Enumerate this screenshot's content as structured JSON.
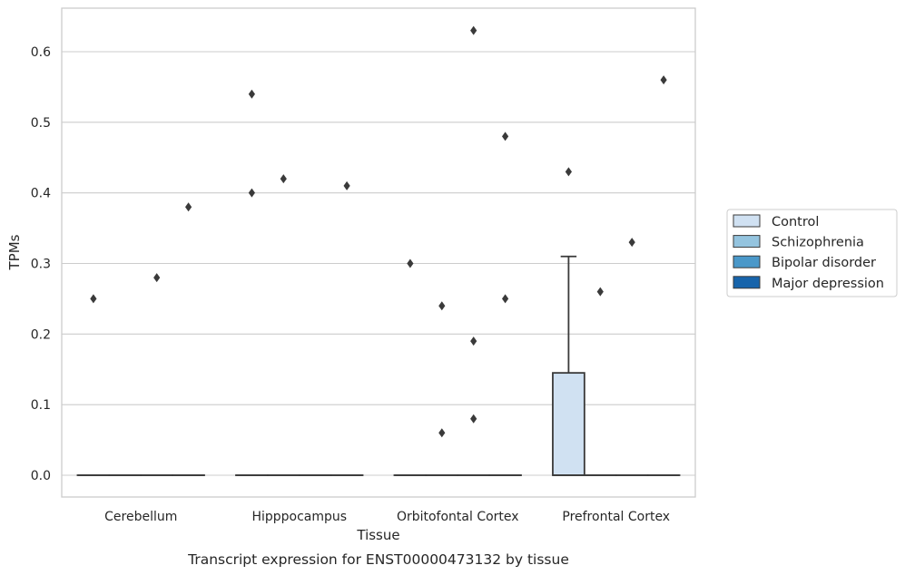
{
  "chart_data": {
    "type": "box",
    "title": "",
    "caption": "Transcript expression for ENST00000473132 by tissue",
    "xlabel": "Tissue",
    "ylabel": "TPMs",
    "ylim": [
      -0.03,
      0.665
    ],
    "yticks": [
      0.0,
      0.1,
      0.2,
      0.3,
      0.4,
      0.5,
      0.6
    ],
    "ytick_labels": [
      "0.0",
      "0.1",
      "0.2",
      "0.3",
      "0.4",
      "0.5",
      "0.6"
    ],
    "grid": "horizontal",
    "legend_position": "right",
    "categories": [
      "Cerebellum",
      "Hipppocampus",
      "Orbitofontal Cortex",
      "Prefrontal Cortex"
    ],
    "series": [
      {
        "name": "Control",
        "color": "#d0e1f2",
        "boxes": [
          {
            "q1": 0,
            "median": 0,
            "q3": 0,
            "whisker_low": 0,
            "whisker_high": 0,
            "outliers": [
              0.25
            ]
          },
          {
            "q1": 0,
            "median": 0,
            "q3": 0,
            "whisker_low": 0,
            "whisker_high": 0,
            "outliers": [
              0.54,
              0.4
            ]
          },
          {
            "q1": 0,
            "median": 0,
            "q3": 0,
            "whisker_low": 0,
            "whisker_high": 0,
            "outliers": [
              0.3
            ]
          },
          {
            "q1": 0,
            "median": 0,
            "q3": 0.145,
            "whisker_low": 0,
            "whisker_high": 0.31,
            "outliers": [
              0.43
            ]
          }
        ]
      },
      {
        "name": "Schizophrenia",
        "color": "#94c4df",
        "boxes": [
          {
            "q1": 0,
            "median": 0,
            "q3": 0,
            "whisker_low": 0,
            "whisker_high": 0,
            "outliers": []
          },
          {
            "q1": 0,
            "median": 0,
            "q3": 0,
            "whisker_low": 0,
            "whisker_high": 0,
            "outliers": [
              0.42
            ]
          },
          {
            "q1": 0,
            "median": 0,
            "q3": 0,
            "whisker_low": 0,
            "whisker_high": 0,
            "outliers": [
              0.24,
              0.06
            ]
          },
          {
            "q1": 0,
            "median": 0,
            "q3": 0,
            "whisker_low": 0,
            "whisker_high": 0,
            "outliers": [
              0.26
            ]
          }
        ]
      },
      {
        "name": "Bipolar disorder",
        "color": "#4a98c9",
        "boxes": [
          {
            "q1": 0,
            "median": 0,
            "q3": 0,
            "whisker_low": 0,
            "whisker_high": 0,
            "outliers": [
              0.28
            ]
          },
          {
            "q1": 0,
            "median": 0,
            "q3": 0,
            "whisker_low": 0,
            "whisker_high": 0,
            "outliers": []
          },
          {
            "q1": 0,
            "median": 0,
            "q3": 0,
            "whisker_low": 0,
            "whisker_high": 0,
            "outliers": [
              0.63,
              0.19,
              0.08
            ]
          },
          {
            "q1": 0,
            "median": 0,
            "q3": 0,
            "whisker_low": 0,
            "whisker_high": 0,
            "outliers": [
              0.33
            ]
          }
        ]
      },
      {
        "name": "Major depression",
        "color": "#1764ab",
        "boxes": [
          {
            "q1": 0,
            "median": 0,
            "q3": 0,
            "whisker_low": 0,
            "whisker_high": 0,
            "outliers": [
              0.38
            ]
          },
          {
            "q1": 0,
            "median": 0,
            "q3": 0,
            "whisker_low": 0,
            "whisker_high": 0,
            "outliers": [
              0.41
            ]
          },
          {
            "q1": 0,
            "median": 0,
            "q3": 0,
            "whisker_low": 0,
            "whisker_high": 0,
            "outliers": [
              0.48,
              0.25
            ]
          },
          {
            "q1": 0,
            "median": 0,
            "q3": 0,
            "whisker_low": 0,
            "whisker_high": 0,
            "outliers": [
              0.56
            ]
          }
        ]
      }
    ]
  }
}
